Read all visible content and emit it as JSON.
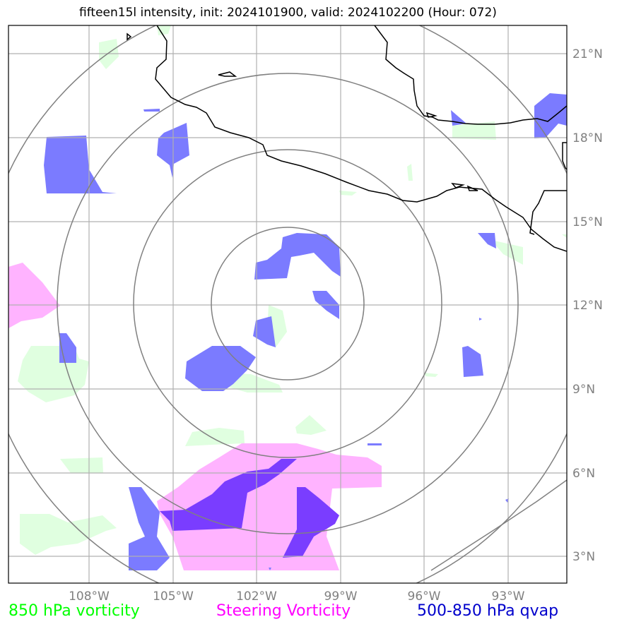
{
  "title": "fifteen15l intensity, init: 2024101900, valid: 2024102200 (Hour: 072)",
  "lat_labels": [
    "21°N",
    "18°N",
    "15°N",
    "12°N",
    "9°N",
    "6°N",
    "3°N"
  ],
  "lon_labels": [
    "108°W",
    "105°W",
    "102°W",
    "99°W",
    "96°W",
    "93°W"
  ],
  "legend": [
    {
      "label": "850 hPa vorticity",
      "color": "#00ff00"
    },
    {
      "label": "Steering Vorticity",
      "color": "#ff00ff"
    },
    {
      "label": "500-850 hPa qvap",
      "color": "#0000cc"
    }
  ],
  "colors": {
    "vorticity_fill": "#e0ffe0",
    "steering_fill": "#ffb3ff",
    "qvap_fill": "#7b7bff",
    "overlap_fill": "#7a3dff",
    "grid": "#b0b0b0",
    "range_rings": "#808080",
    "coastline": "#000000"
  },
  "map": {
    "lon_range": [
      -111,
      -91
    ],
    "lat_range": [
      2,
      22
    ],
    "center": {
      "lon": -100.5,
      "lat": 12
    },
    "ring_count": 4
  }
}
